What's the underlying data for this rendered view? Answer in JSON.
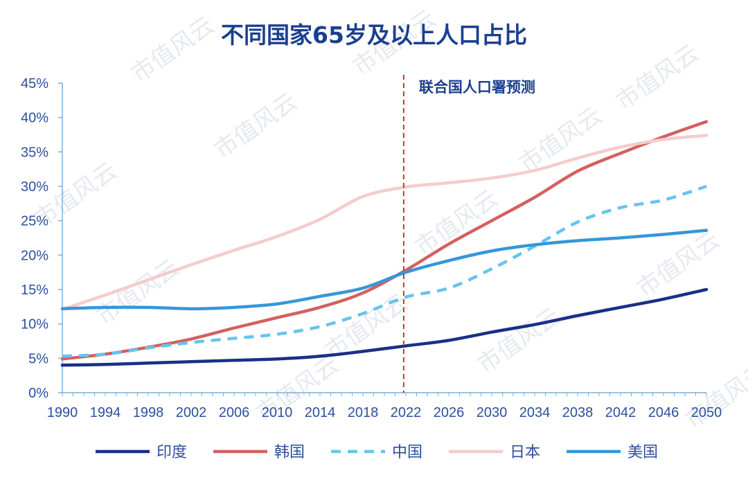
{
  "watermark": {
    "text": "市值风云"
  },
  "chart_data": {
    "type": "line",
    "title": "不同国家65岁及以上人口占比",
    "xlabel": "",
    "ylabel": "",
    "xlim": [
      1990,
      2050
    ],
    "ylim": [
      0,
      45
    ],
    "x_ticks": [
      "1990",
      "1994",
      "1998",
      "2002",
      "2006",
      "2010",
      "2014",
      "2018",
      "2022",
      "2026",
      "2030",
      "2034",
      "2038",
      "2042",
      "2046",
      "2050"
    ],
    "y_ticks": [
      "0%",
      "5%",
      "10%",
      "15%",
      "20%",
      "25%",
      "30%",
      "35%",
      "40%",
      "45%"
    ],
    "annotation": {
      "text": "联合国人口署预测",
      "x": 2021.8
    },
    "legend_position": "bottom",
    "series": [
      {
        "name": "印度",
        "color": "#1a2f87",
        "style": "solid",
        "x": [
          1990,
          1994,
          1998,
          2002,
          2006,
          2010,
          2014,
          2018,
          2022,
          2026,
          2030,
          2034,
          2038,
          2042,
          2046,
          2050
        ],
        "y": [
          4.0,
          4.1,
          4.3,
          4.5,
          4.7,
          4.9,
          5.3,
          6.0,
          6.8,
          7.6,
          8.8,
          9.9,
          11.2,
          12.4,
          13.6,
          15.0
        ]
      },
      {
        "name": "韩国",
        "color": "#d4605f",
        "style": "solid",
        "x": [
          1990,
          1994,
          1998,
          2002,
          2006,
          2010,
          2014,
          2018,
          2022,
          2026,
          2030,
          2034,
          2038,
          2042,
          2046,
          2050
        ],
        "y": [
          4.9,
          5.6,
          6.6,
          7.8,
          9.4,
          10.9,
          12.4,
          14.5,
          17.8,
          21.6,
          25.0,
          28.4,
          32.2,
          34.8,
          37.2,
          39.4
        ]
      },
      {
        "name": "中国",
        "color": "#66c4ee",
        "style": "dashed",
        "x": [
          1990,
          1994,
          1998,
          2002,
          2006,
          2010,
          2014,
          2018,
          2022,
          2026,
          2030,
          2034,
          2038,
          2042,
          2046,
          2050
        ],
        "y": [
          5.3,
          5.6,
          6.5,
          7.3,
          7.9,
          8.5,
          9.6,
          11.5,
          13.9,
          15.2,
          18.0,
          21.3,
          24.8,
          26.9,
          28.0,
          30.0
        ]
      },
      {
        "name": "日本",
        "color": "#f4cccc",
        "style": "solid",
        "x": [
          1990,
          1994,
          1998,
          2002,
          2006,
          2010,
          2014,
          2018,
          2022,
          2026,
          2030,
          2034,
          2038,
          2042,
          2046,
          2050
        ],
        "y": [
          12.1,
          14.2,
          16.4,
          18.6,
          20.7,
          22.7,
          25.2,
          28.5,
          29.9,
          30.5,
          31.2,
          32.3,
          34.1,
          35.7,
          36.8,
          37.4
        ]
      },
      {
        "name": "美国",
        "color": "#3497db",
        "style": "solid",
        "x": [
          1990,
          1994,
          1998,
          2002,
          2006,
          2010,
          2014,
          2018,
          2022,
          2026,
          2030,
          2034,
          2038,
          2042,
          2046,
          2050
        ],
        "y": [
          12.2,
          12.4,
          12.4,
          12.2,
          12.4,
          12.9,
          14.0,
          15.2,
          17.5,
          19.2,
          20.6,
          21.5,
          22.1,
          22.5,
          23.0,
          23.6
        ]
      }
    ]
  }
}
